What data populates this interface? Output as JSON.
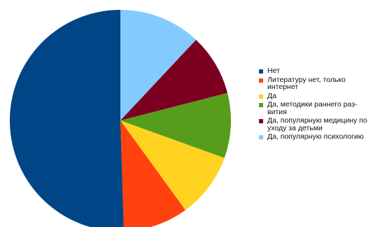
{
  "chart_data": {
    "type": "pie",
    "categories": [
      "Нет",
      "Литературу нет, только\nинтернет",
      "Да",
      "Да, методики раннего раз-\nвития",
      "Да, популярную медицину по\nуходу за детьми",
      "Да, популярную психологию"
    ],
    "values": [
      50.5,
      9.5,
      9.5,
      9.5,
      9.0,
      12.0
    ],
    "colors": [
      "#004586",
      "#ff420e",
      "#ffd320",
      "#579d1c",
      "#7e0021",
      "#83caff"
    ],
    "start_angle_deg": 90,
    "direction": "clockwise_from_psychology",
    "legend_position": "right"
  }
}
